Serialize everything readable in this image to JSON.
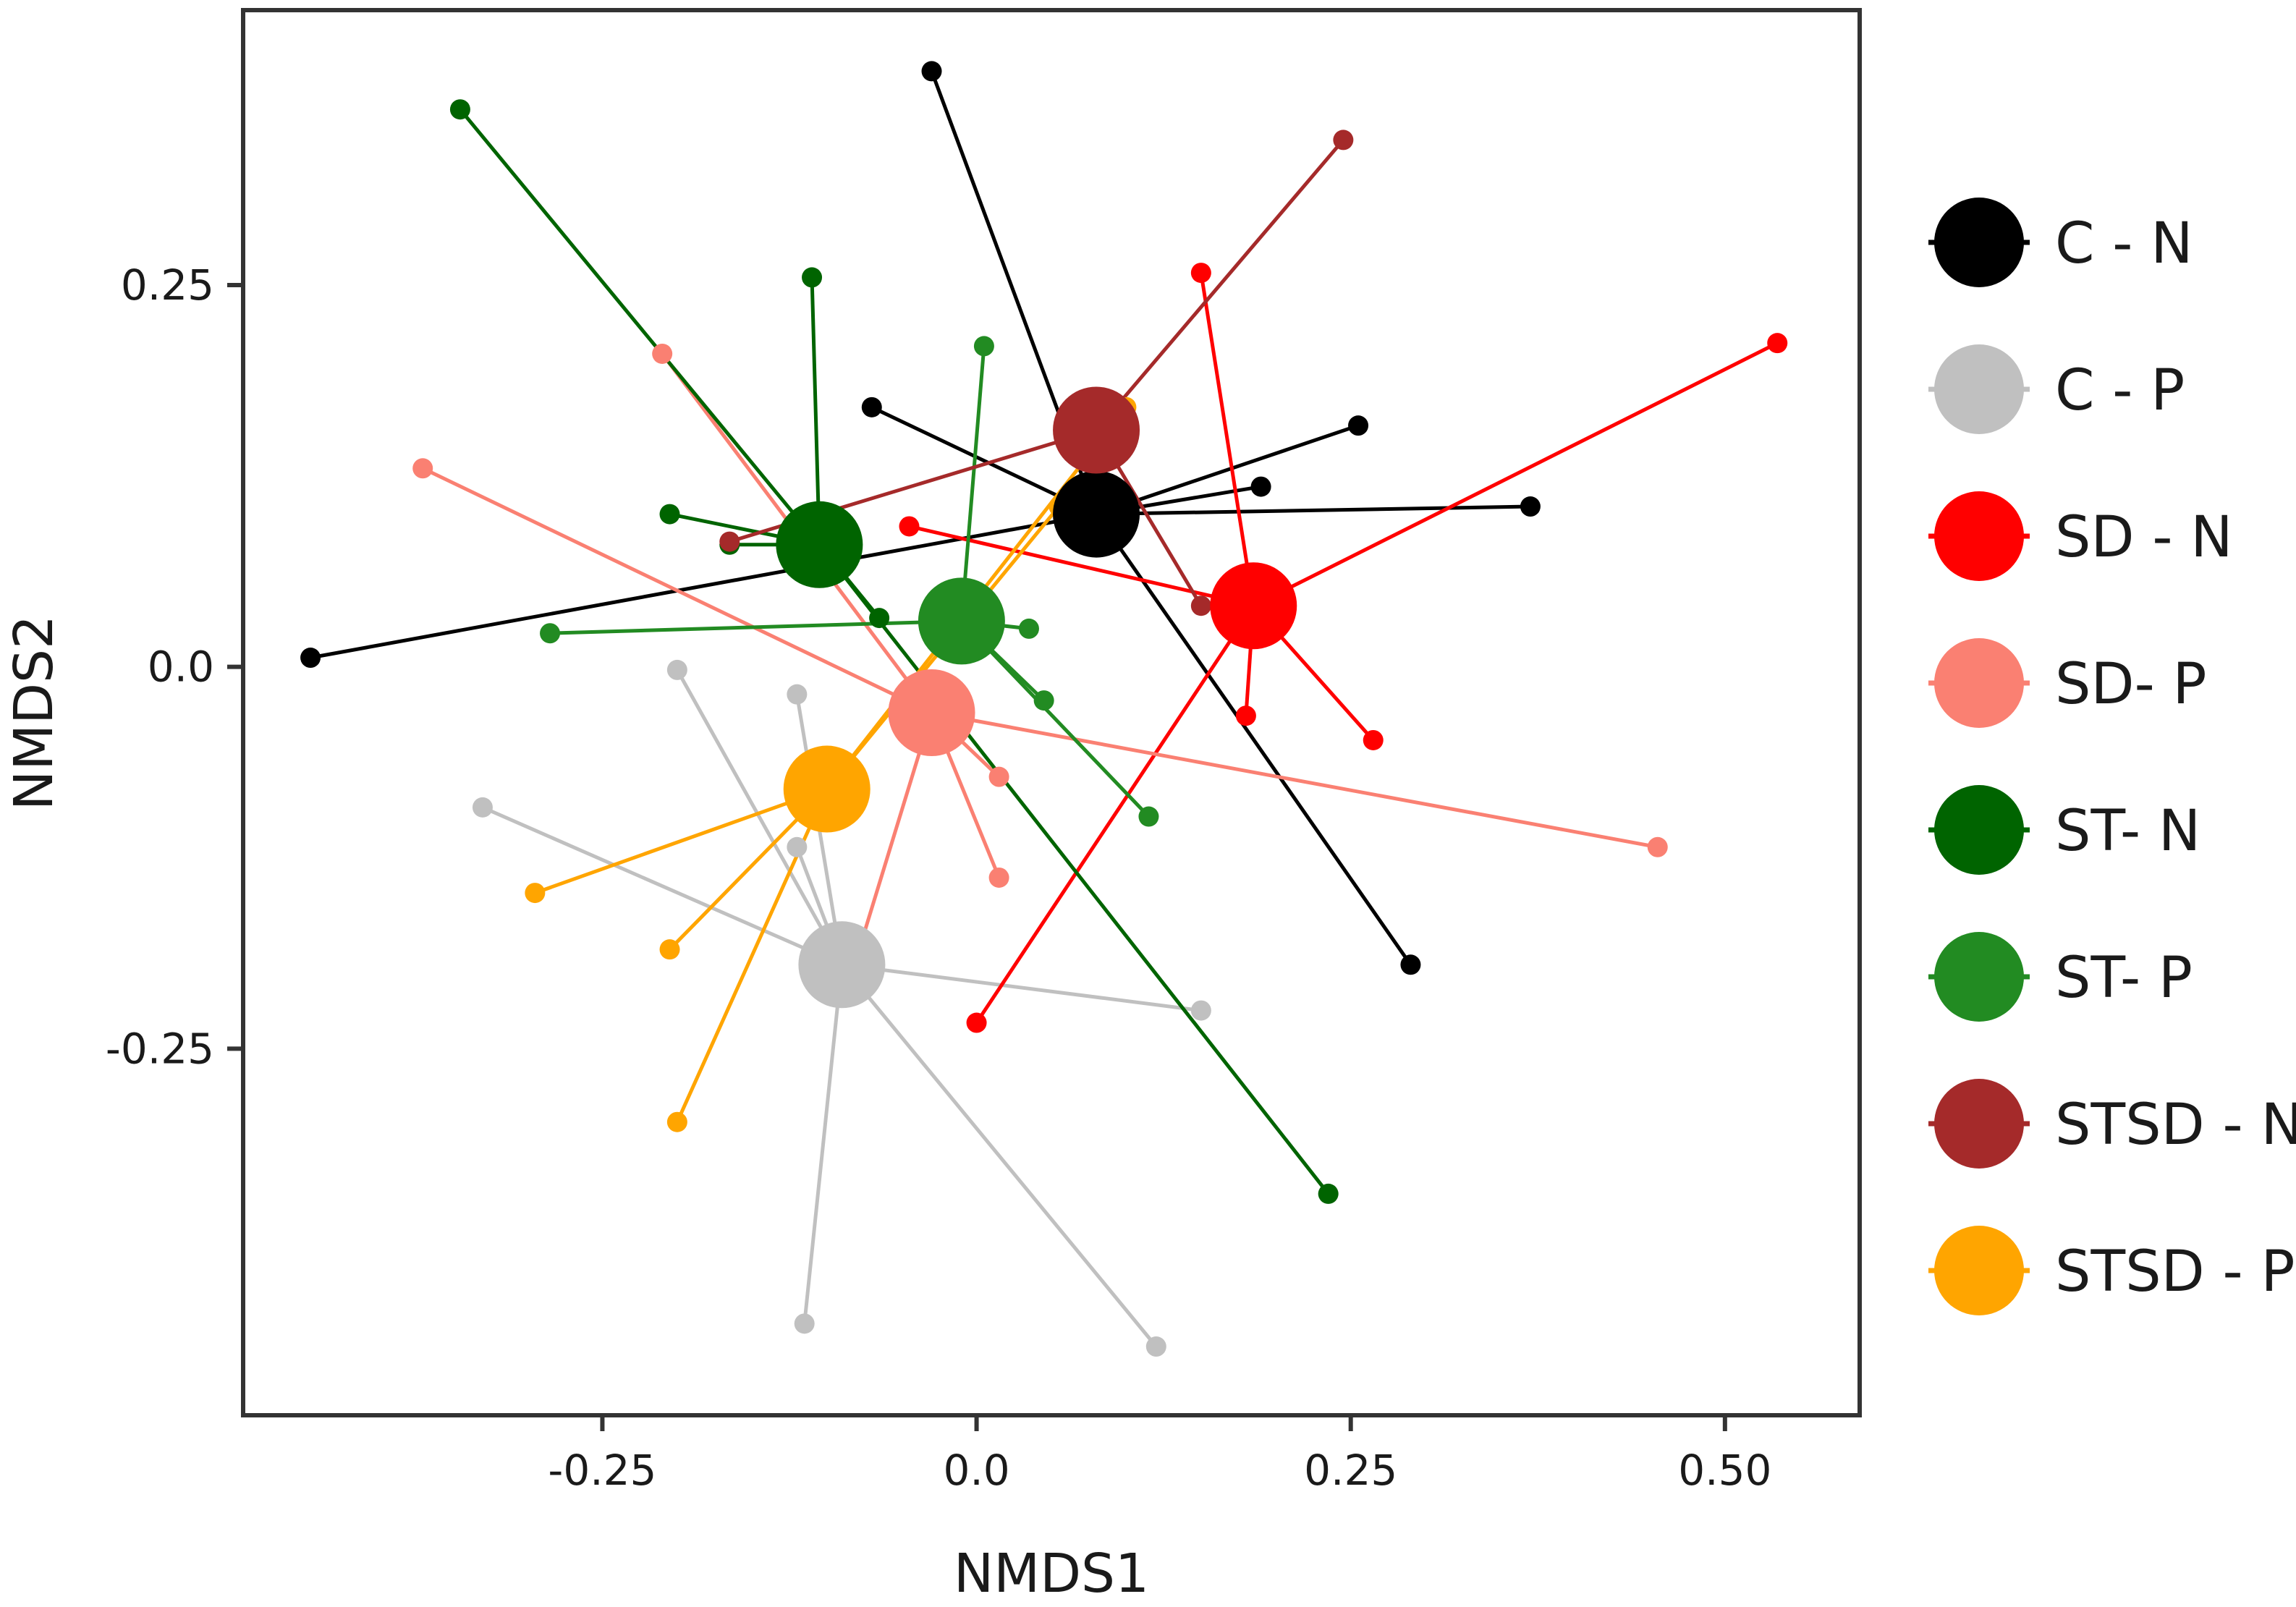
{
  "chart_data": {
    "type": "scatter",
    "subtype": "nmds-spider-plot",
    "title": "",
    "xlabel": "NMDS1",
    "ylabel": "NMDS2",
    "xlim": [
      -0.49,
      0.59
    ],
    "ylim": [
      -0.49,
      0.43
    ],
    "xticks": [
      -0.25,
      0.0,
      0.25,
      0.5
    ],
    "xtick_labels": [
      "-0.25",
      "0.0",
      "0.25",
      "0.50"
    ],
    "yticks": [
      0.25,
      0.0,
      -0.25
    ],
    "ytick_labels": [
      "0.25",
      "0.0",
      "-0.25"
    ],
    "grid": false,
    "legend_position": "right",
    "series": [
      {
        "name": "C - N",
        "color": "#000000",
        "centroid": [
          0.08,
          0.1
        ],
        "points": [
          [
            -0.445,
            0.006
          ],
          [
            -0.03,
            0.39
          ],
          [
            -0.07,
            0.17
          ],
          [
            0.255,
            0.158
          ],
          [
            0.19,
            0.118
          ],
          [
            0.37,
            0.105
          ],
          [
            0.29,
            -0.195
          ]
        ]
      },
      {
        "name": "C - P",
        "color": "#c0c0c0",
        "centroid": [
          -0.09,
          -0.195
        ],
        "points": [
          [
            -0.33,
            -0.092
          ],
          [
            -0.2,
            -0.002
          ],
          [
            -0.12,
            -0.018
          ],
          [
            -0.12,
            -0.118
          ],
          [
            -0.115,
            -0.43
          ],
          [
            0.12,
            -0.445
          ],
          [
            0.15,
            -0.225
          ]
        ]
      },
      {
        "name": "SD - N",
        "color": "#ff0000",
        "centroid": [
          0.185,
          0.04
        ],
        "points": [
          [
            0.15,
            0.258
          ],
          [
            0.535,
            0.212
          ],
          [
            -0.045,
            0.092
          ],
          [
            0.18,
            -0.032
          ],
          [
            0.265,
            -0.048
          ],
          [
            0.0,
            -0.233
          ]
        ]
      },
      {
        "name": "SD- P",
        "color": "#fa8072",
        "centroid": [
          -0.03,
          -0.03
        ],
        "points": [
          [
            -0.21,
            0.205
          ],
          [
            -0.37,
            0.13
          ],
          [
            0.455,
            -0.118
          ],
          [
            0.015,
            -0.072
          ],
          [
            0.015,
            -0.138
          ],
          [
            -0.08,
            -0.19
          ]
        ]
      },
      {
        "name": "ST- N",
        "color": "#006400",
        "centroid": [
          -0.105,
          0.08
        ],
        "points": [
          [
            -0.345,
            0.365
          ],
          [
            -0.11,
            0.255
          ],
          [
            -0.205,
            0.1
          ],
          [
            -0.165,
            0.08
          ],
          [
            -0.065,
            0.032
          ],
          [
            0.235,
            -0.345
          ]
        ]
      },
      {
        "name": "ST- P",
        "color": "#228b22",
        "centroid": [
          -0.01,
          0.03
        ],
        "points": [
          [
            0.005,
            0.21
          ],
          [
            -0.285,
            0.022
          ],
          [
            0.035,
            0.025
          ],
          [
            0.045,
            -0.022
          ],
          [
            0.115,
            -0.098
          ]
        ]
      },
      {
        "name": "STSD - N",
        "color": "#a52a2a",
        "centroid": [
          0.08,
          0.155
        ],
        "points": [
          [
            0.245,
            0.345
          ],
          [
            -0.165,
            0.082
          ],
          [
            0.15,
            0.04
          ]
        ]
      },
      {
        "name": "STSD - P",
        "color": "#ffa500",
        "centroid": [
          -0.1,
          -0.08
        ],
        "points": [
          [
            0.1,
            0.17
          ],
          [
            0.055,
            0.105
          ],
          [
            -0.295,
            -0.148
          ],
          [
            -0.205,
            -0.185
          ],
          [
            -0.2,
            -0.298
          ]
        ]
      }
    ]
  }
}
